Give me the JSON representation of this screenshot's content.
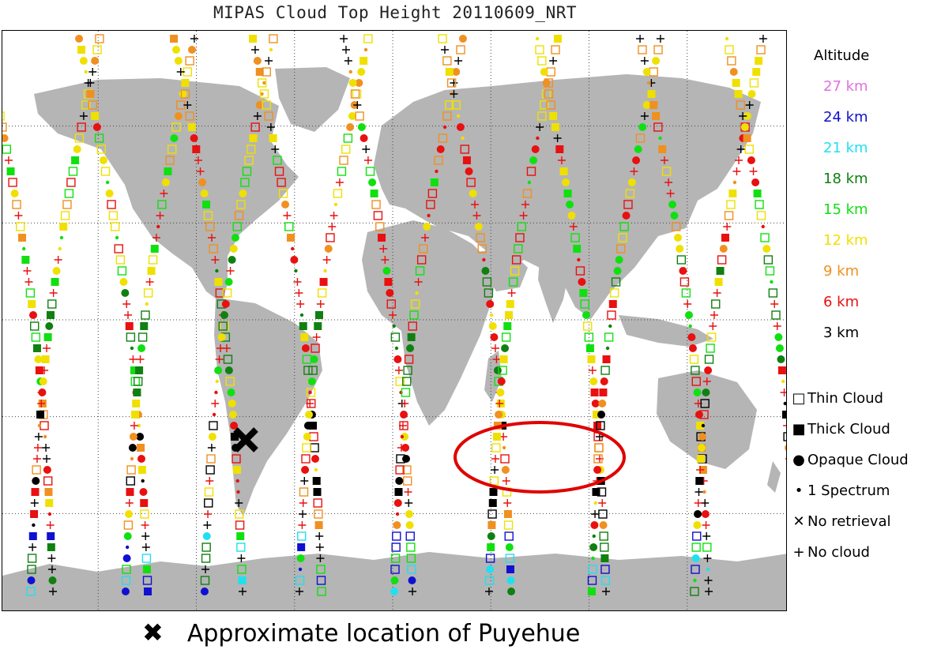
{
  "title": "MIPAS Cloud Top Height 20110609_NRT",
  "colors": {
    "land": "#b5b5b5",
    "grid": "#444444",
    "highlight_ellipse": "#e00000",
    "volcano_marker": "#000000"
  },
  "legend": {
    "altitude_title": "Altitude",
    "altitudes": [
      {
        "label": "27 km",
        "color": "#e070e0"
      },
      {
        "label": "24 km",
        "color": "#1010d0"
      },
      {
        "label": "21 km",
        "color": "#20e0f0"
      },
      {
        "label": "18 km",
        "color": "#108010"
      },
      {
        "label": "15 km",
        "color": "#10e010"
      },
      {
        "label": "12 km",
        "color": "#f0e000"
      },
      {
        "label": "9 km",
        "color": "#f09020"
      },
      {
        "label": "6 km",
        "color": "#e81010"
      },
      {
        "label": "3 km",
        "color": "#000000"
      }
    ],
    "symbols": [
      {
        "glyph": "□",
        "label": "Thin Cloud",
        "icon": "hollow-square-icon"
      },
      {
        "glyph": "■",
        "label": "Thick Cloud",
        "icon": "filled-square-icon"
      },
      {
        "glyph": "●",
        "label": "Opaque Cloud",
        "icon": "filled-circle-icon"
      },
      {
        "glyph": "•",
        "label": "1 Spectrum",
        "icon": "small-dot-icon"
      },
      {
        "glyph": "✕",
        "label": "No retrieval",
        "icon": "x-mark-icon"
      },
      {
        "glyph": "+",
        "label": "No cloud",
        "icon": "plus-icon"
      }
    ]
  },
  "footnote": {
    "marker_glyph": "✖",
    "text": "Approximate location of Puyehue"
  }
}
